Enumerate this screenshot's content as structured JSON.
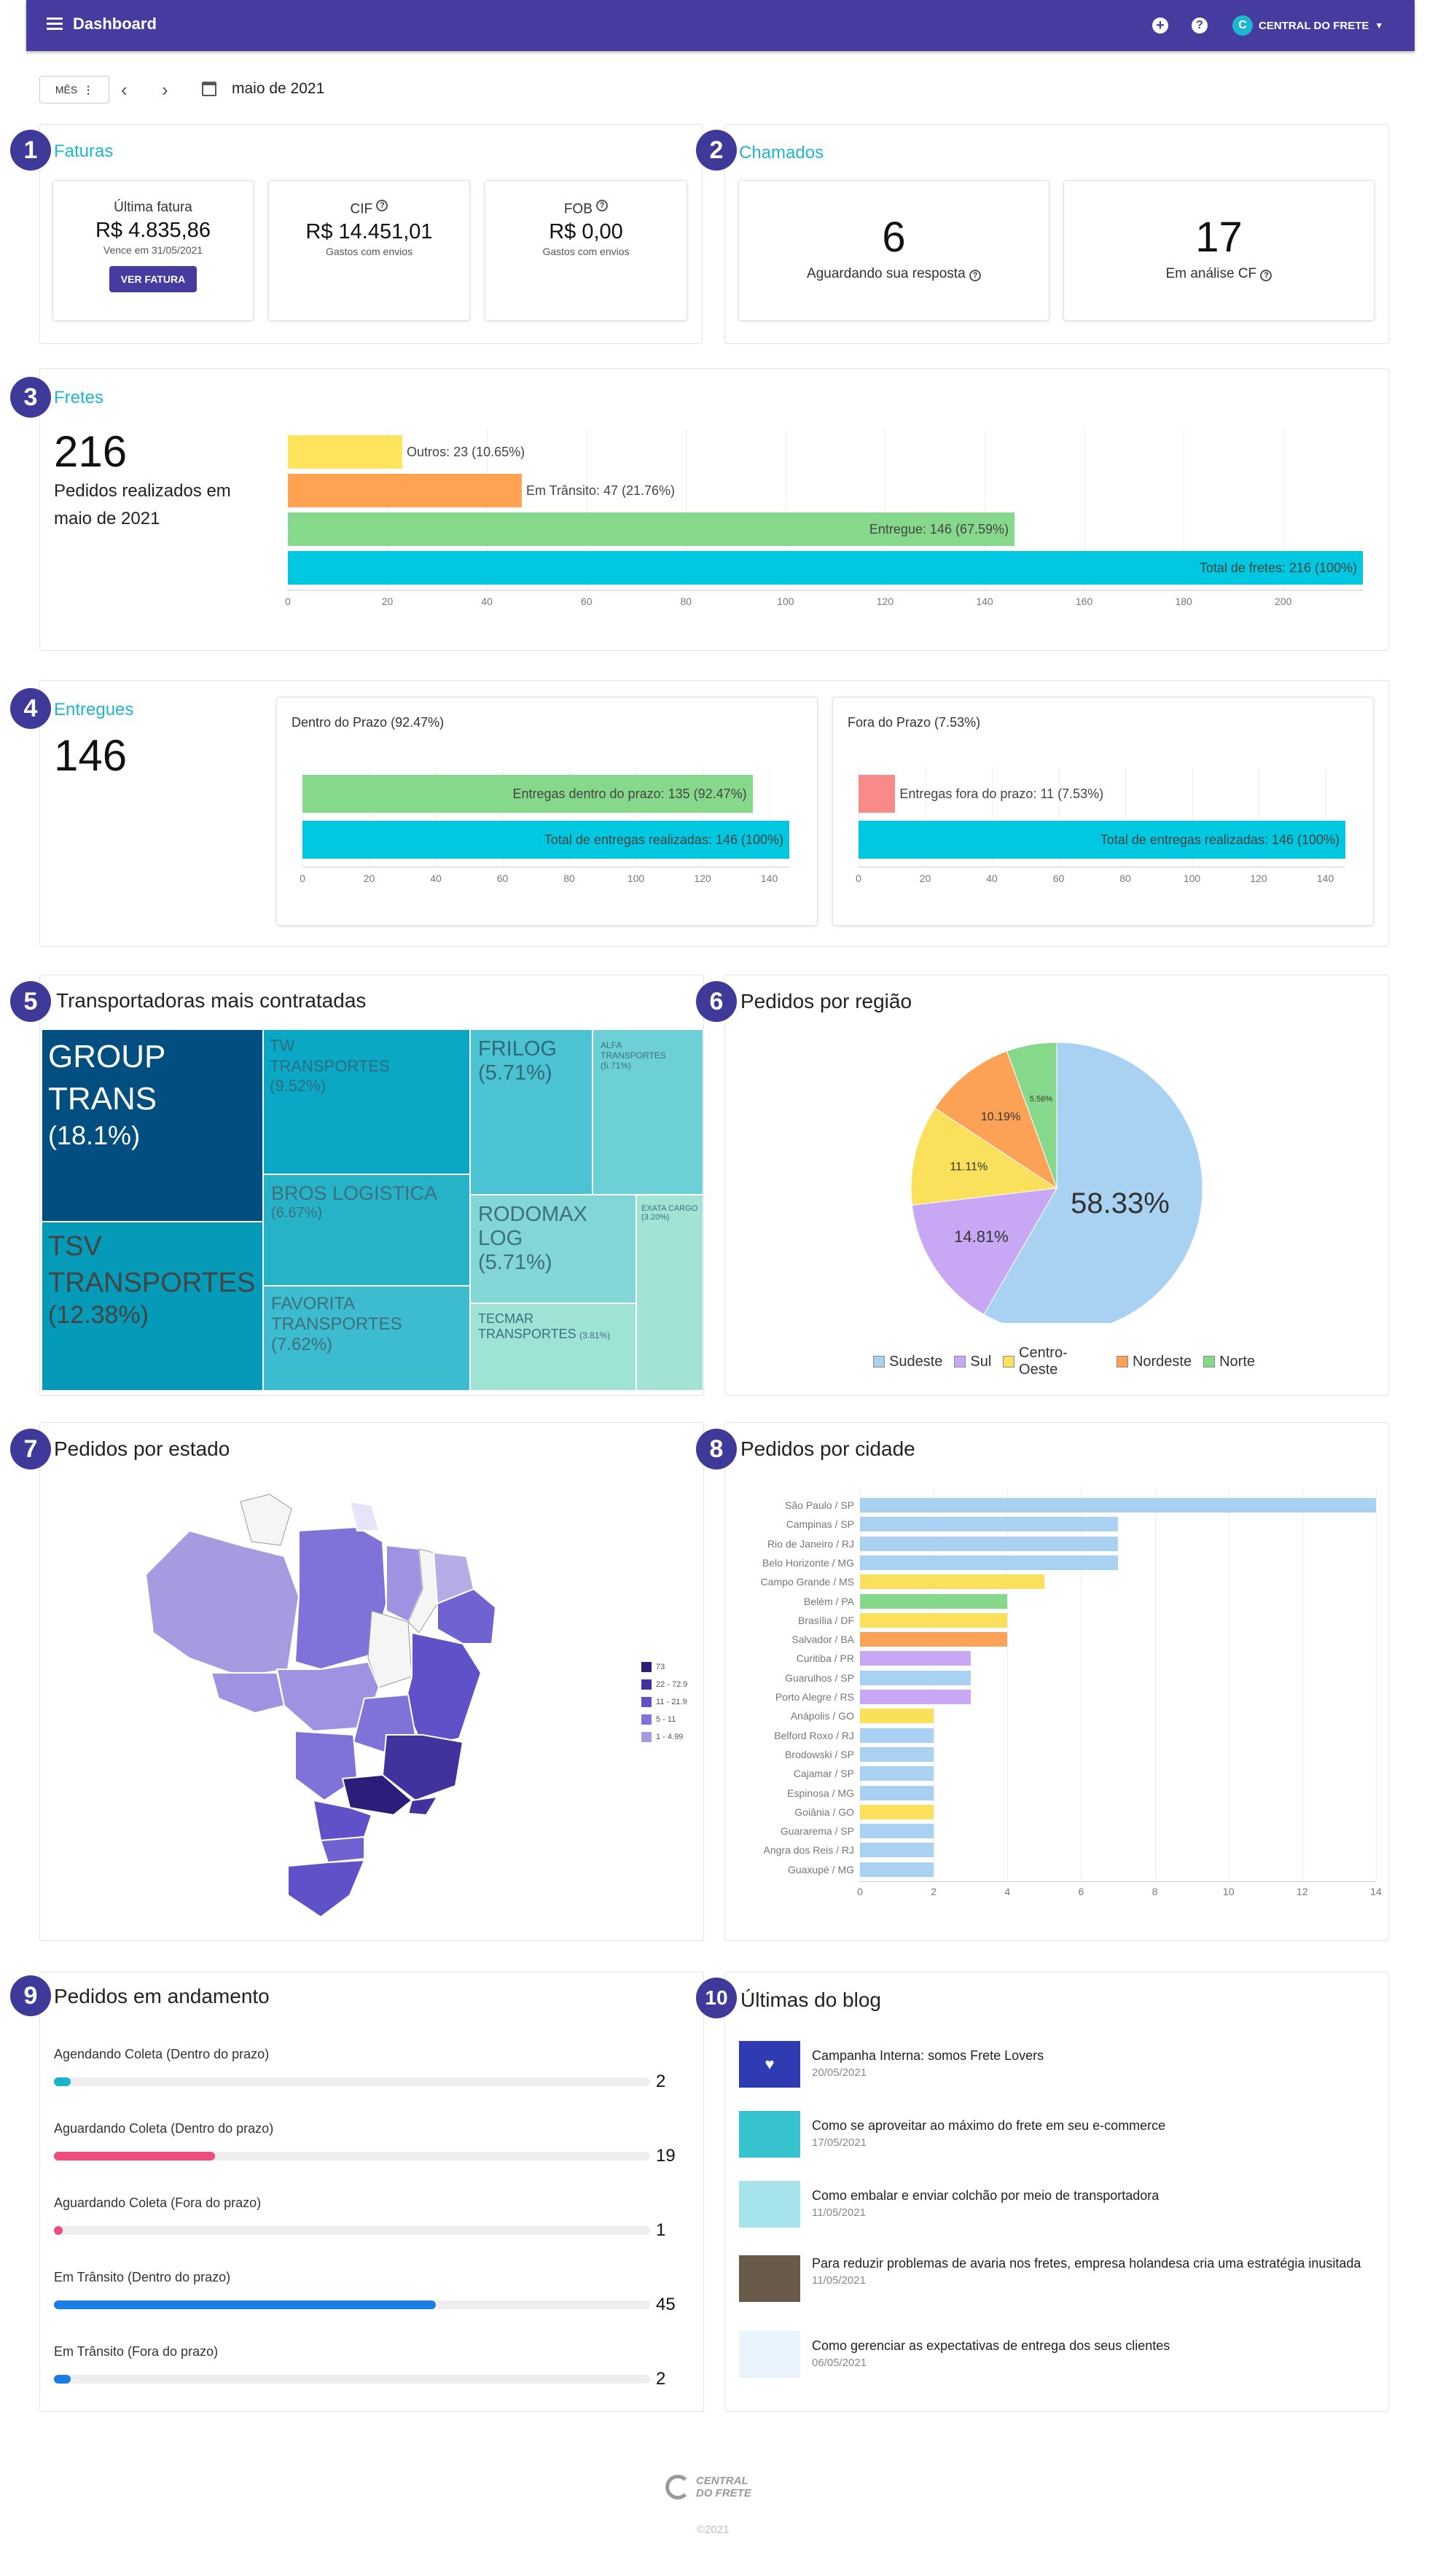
{
  "topbar": {
    "title": "Dashboard",
    "account": "CENTRAL DO FRETE",
    "color": "#463c9f"
  },
  "period": {
    "mode": "MÊS",
    "date": "maio de 2021"
  },
  "badges": [
    "1",
    "2",
    "3",
    "4",
    "5",
    "6",
    "7",
    "8",
    "9",
    "10"
  ],
  "faturas": {
    "title": "Faturas",
    "ultima": {
      "label": "Última fatura",
      "value": "R$ 4.835,86",
      "sub": "Vence em 31/05/2021",
      "button": "VER FATURA"
    },
    "cif": {
      "label": "CIF",
      "value": "R$ 14.451,01",
      "sub": "Gastos com envios"
    },
    "fob": {
      "label": "FOB",
      "value": "R$ 0,00",
      "sub": "Gastos com envios"
    }
  },
  "chamados": {
    "title": "Chamados",
    "aguardando": {
      "value": "6",
      "label": "Aguardando sua resposta"
    },
    "analise": {
      "value": "17",
      "label": "Em análise CF"
    }
  },
  "fretes": {
    "title": "Fretes",
    "count": "216",
    "desc": "Pedidos realizados em maio de 2021"
  },
  "entregues": {
    "title": "Entregues",
    "count": "146",
    "dentro_title": "Dentro do Prazo (92.47%)",
    "fora_title": "Fora do Prazo (7.53%)"
  },
  "transportadoras": {
    "title": "Transportadoras mais contratadas",
    "items": [
      {
        "name": "GROUP TRANS",
        "pct": "(18.1%)"
      },
      {
        "name": "TSV TRANSPORTES",
        "pct": "(12.38%)"
      },
      {
        "name": "TW TRANSPORTES",
        "pct": "(9.52%)"
      },
      {
        "name": "BROS LOGISTICA",
        "pct": "(6.67%)"
      },
      {
        "name": "FAVORITA TRANSPORTES",
        "pct": "(7.62%)"
      },
      {
        "name": "FRILOG",
        "pct": "(5.71%)"
      },
      {
        "name": "ALFA TRANSPORTES",
        "pct": "(5.71%)"
      },
      {
        "name": "RODOMAX LOG",
        "pct": "(5.71%)"
      },
      {
        "name": "EXATA CARGO",
        "pct": "(3.20%)"
      },
      {
        "name": "TECMAR TRANSPORTES",
        "pct": "(3.81%)"
      }
    ]
  },
  "regiao": {
    "title": "Pedidos por região"
  },
  "estado": {
    "title": "Pedidos por estado",
    "legend": [
      "73",
      "22 - 72.9",
      "11 - 21.9",
      "5 - 11",
      "1 - 4.99"
    ]
  },
  "cidade": {
    "title": "Pedidos por cidade"
  },
  "andamento": {
    "title": "Pedidos em andamento",
    "max": 45,
    "items": [
      {
        "label": "Agendando Coleta (Dentro do prazo)",
        "count": "2",
        "value": 2,
        "color": "#1bb3c9"
      },
      {
        "label": "Aguardando Coleta (Dentro do prazo)",
        "count": "19",
        "value": 19,
        "color": "#ee4c7f"
      },
      {
        "label": "Aguardando Coleta (Fora do prazo)",
        "count": "1",
        "value": 1,
        "color": "#ee4c7f"
      },
      {
        "label": "Em Trânsito (Dentro do prazo)",
        "count": "45",
        "value": 45,
        "color": "#1a7de6"
      },
      {
        "label": "Em Trânsito (Fora do prazo)",
        "count": "2",
        "value": 2,
        "color": "#1a7de6"
      }
    ]
  },
  "blog": {
    "title": "Últimas do blog",
    "items": [
      {
        "title": "Campanha Interna: somos Frete Lovers",
        "date": "20/05/2021"
      },
      {
        "title": "Como se aproveitar ao máximo do frete em seu e-commerce",
        "date": "17/05/2021"
      },
      {
        "title": "Como embalar e enviar colchão por meio de transportadora",
        "date": "11/05/2021"
      },
      {
        "title": "Para reduzir problemas de avaria nos fretes, empresa holandesa cria uma estratégia inusitada",
        "date": "11/05/2021"
      },
      {
        "title": "Como gerenciar as expectativas de entrega dos seus clientes",
        "date": "06/05/2021"
      }
    ]
  },
  "footer": {
    "logo_line1": "CENTRAL",
    "logo_line2": "DO FRETE",
    "copyright": "©2021"
  },
  "chart_data": [
    {
      "type": "bar",
      "name": "fretes",
      "orientation": "horizontal",
      "xlim": [
        0,
        216
      ],
      "ticks": [
        0,
        20,
        40,
        60,
        80,
        100,
        120,
        140,
        160,
        180,
        200
      ],
      "bars": [
        {
          "label": "Outros: 23 (10.65%)",
          "value": 23,
          "color": "#ffe45c"
        },
        {
          "label": "Em Trânsito: 47 (21.76%)",
          "value": 47,
          "color": "#ffa352"
        },
        {
          "label": "Entregue: 146 (67.59%)",
          "value": 146,
          "color": "#86d98a"
        },
        {
          "label": "Total de fretes: 216 (100%)",
          "value": 216,
          "color": "#00c8e0"
        }
      ]
    },
    {
      "type": "bar",
      "name": "dentro_prazo",
      "orientation": "horizontal",
      "xlim": [
        0,
        146
      ],
      "ticks": [
        0,
        20,
        40,
        60,
        80,
        100,
        120,
        140
      ],
      "bars": [
        {
          "label": "Entregas dentro do prazo: 135 (92.47%)",
          "value": 135,
          "color": "#86d98a"
        },
        {
          "label": "Total de entregas realizadas: 146 (100%)",
          "value": 146,
          "color": "#00c8e0"
        }
      ]
    },
    {
      "type": "bar",
      "name": "fora_prazo",
      "orientation": "horizontal",
      "xlim": [
        0,
        146
      ],
      "ticks": [
        0,
        20,
        40,
        60,
        80,
        100,
        120,
        140
      ],
      "bars": [
        {
          "label": "Entregas fora do prazo: 11 (7.53%)",
          "value": 11,
          "color": "#f98a8a"
        },
        {
          "label": "Total de entregas realizadas: 146 (100%)",
          "value": 146,
          "color": "#00c8e0"
        }
      ]
    },
    {
      "type": "pie",
      "name": "regiao",
      "slices": [
        {
          "label": "Sudeste",
          "value": 58.33,
          "text": "58.33%",
          "color": "#a9d2f2"
        },
        {
          "label": "Sul",
          "value": 14.81,
          "text": "14.81%",
          "color": "#c8a8f5"
        },
        {
          "label": "Centro-Oeste",
          "value": 11.11,
          "text": "11.11%",
          "color": "#fbe05b"
        },
        {
          "label": "Nordeste",
          "value": 10.19,
          "text": "10.19%",
          "color": "#fba257"
        },
        {
          "label": "Norte",
          "value": 5.56,
          "text": "5.56%",
          "color": "#86d98a"
        }
      ]
    },
    {
      "type": "bar",
      "name": "cidade",
      "orientation": "horizontal",
      "xlim": [
        0,
        14
      ],
      "ticks": [
        0,
        2,
        4,
        6,
        8,
        10,
        12,
        14
      ],
      "bars": [
        {
          "label": "São Paulo / SP",
          "value": 14,
          "color": "#a9d2f2"
        },
        {
          "label": "Campinas / SP",
          "value": 7,
          "color": "#a9d2f2"
        },
        {
          "label": "Rio de Janeiro / RJ",
          "value": 7,
          "color": "#a9d2f2"
        },
        {
          "label": "Belo Horizonte / MG",
          "value": 7,
          "color": "#a9d2f2"
        },
        {
          "label": "Campo Grande / MS",
          "value": 5,
          "color": "#fbe05b"
        },
        {
          "label": "Belém / PA",
          "value": 4,
          "color": "#86d98a"
        },
        {
          "label": "Brasília / DF",
          "value": 4,
          "color": "#fbe05b"
        },
        {
          "label": "Salvador / BA",
          "value": 4,
          "color": "#fba257"
        },
        {
          "label": "Curitiba / PR",
          "value": 3,
          "color": "#c8a8f5"
        },
        {
          "label": "Guarulhos / SP",
          "value": 3,
          "color": "#a9d2f2"
        },
        {
          "label": "Porto Alegre / RS",
          "value": 3,
          "color": "#c8a8f5"
        },
        {
          "label": "Anápolis / GO",
          "value": 2,
          "color": "#fbe05b"
        },
        {
          "label": "Belford Roxo / RJ",
          "value": 2,
          "color": "#a9d2f2"
        },
        {
          "label": "Brodowski / SP",
          "value": 2,
          "color": "#a9d2f2"
        },
        {
          "label": "Cajamar / SP",
          "value": 2,
          "color": "#a9d2f2"
        },
        {
          "label": "Espinosa / MG",
          "value": 2,
          "color": "#a9d2f2"
        },
        {
          "label": "Goiânia / GO",
          "value": 2,
          "color": "#fbe05b"
        },
        {
          "label": "Guararema / SP",
          "value": 2,
          "color": "#a9d2f2"
        },
        {
          "label": "Angra dos Reis / RJ",
          "value": 2,
          "color": "#a9d2f2"
        },
        {
          "label": "Guaxupé / MG",
          "value": 2,
          "color": "#a9d2f2"
        }
      ]
    }
  ]
}
